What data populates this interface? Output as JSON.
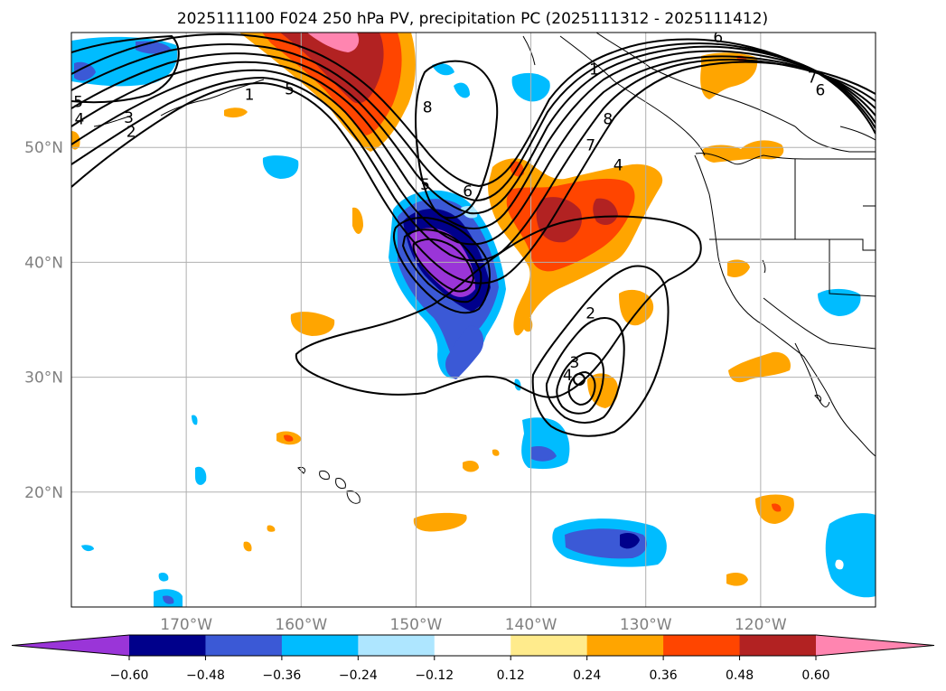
{
  "chart_data": {
    "type": "contour-map",
    "title": "2025111100 F024 250 hPa PV, precipitation PC (2025111312 - 2025111412)",
    "x_range": [
      -180,
      -110
    ],
    "y_range": [
      10,
      60
    ],
    "lat_ticks": [
      {
        "value": 50,
        "label": "50°N"
      },
      {
        "value": 40,
        "label": "40°N"
      },
      {
        "value": 30,
        "label": "30°N"
      },
      {
        "value": 20,
        "label": "20°N"
      }
    ],
    "lon_ticks": [
      {
        "value": -170,
        "label": "170°W"
      },
      {
        "value": -160,
        "label": "160°W"
      },
      {
        "value": -150,
        "label": "150°W"
      },
      {
        "value": -140,
        "label": "140°W"
      },
      {
        "value": -130,
        "label": "130°W"
      },
      {
        "value": -120,
        "label": "120°W"
      }
    ],
    "colorbar": {
      "levels": [
        -0.6,
        -0.48,
        -0.36,
        -0.24,
        -0.12,
        0.12,
        0.24,
        0.36,
        0.48,
        0.6
      ],
      "tick_labels": [
        "−0.60",
        "−0.48",
        "−0.36",
        "−0.24",
        "−0.12",
        "0.12",
        "0.24",
        "0.36",
        "0.48",
        "0.60"
      ],
      "colors": [
        "#9a35d8",
        "#00008b",
        "#3b59d6",
        "#00bcff",
        "#aee6ff",
        "#ffffff",
        "#ffeb8c",
        "#ffa500",
        "#ff4500",
        "#b22222",
        "#ff85b0"
      ]
    },
    "pv_contour_labels": [
      {
        "text": "1",
        "lon": -164.5,
        "lat": 54.6
      },
      {
        "text": "5",
        "lon": -161,
        "lat": 55.1
      },
      {
        "text": "8",
        "lon": -149,
        "lat": 53.5
      },
      {
        "text": "5",
        "lon": -149.2,
        "lat": 46.8
      },
      {
        "text": "6",
        "lon": -145.5,
        "lat": 46.2
      },
      {
        "text": "8",
        "lon": -133.3,
        "lat": 52.5
      },
      {
        "text": "1",
        "lon": -134.5,
        "lat": 56.8
      },
      {
        "text": "7",
        "lon": -134.8,
        "lat": 50.2
      },
      {
        "text": "4",
        "lon": -132.4,
        "lat": 48.5
      },
      {
        "text": "7",
        "lon": -115.5,
        "lat": 56.1
      },
      {
        "text": "6",
        "lon": -114.8,
        "lat": 55.0
      },
      {
        "text": "6",
        "lon": -123.7,
        "lat": 59.6
      },
      {
        "text": "5",
        "lon": -179.4,
        "lat": 54.0
      },
      {
        "text": "4",
        "lon": -179.3,
        "lat": 52.5
      },
      {
        "text": "3",
        "lon": -175,
        "lat": 52.6
      },
      {
        "text": "2",
        "lon": -174.8,
        "lat": 51.4
      },
      {
        "text": "2",
        "lon": -134.8,
        "lat": 35.6
      },
      {
        "text": "3",
        "lon": -136.2,
        "lat": 31.3
      },
      {
        "text": "4",
        "lon": -136.8,
        "lat": 30.2
      }
    ]
  }
}
